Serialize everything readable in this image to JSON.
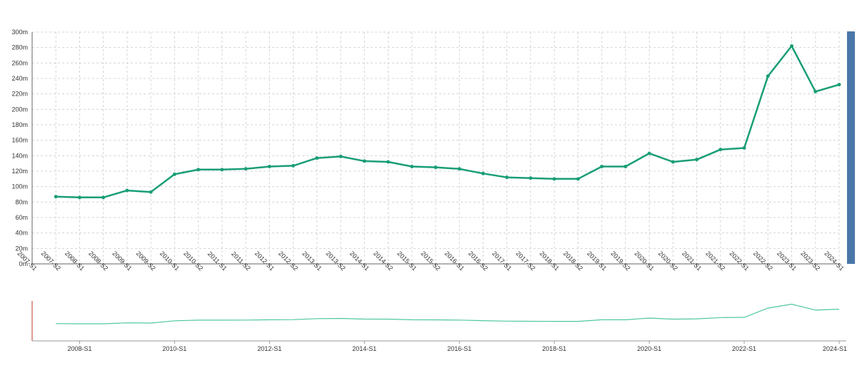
{
  "chart_data": {
    "type": "line",
    "title": "",
    "xlabel": "",
    "ylabel": "",
    "categories": [
      "2007-S1",
      "2007-S2",
      "2008-S1",
      "2008-S2",
      "2009-S1",
      "2009-S2",
      "2010-S1",
      "2010-S2",
      "2011-S1",
      "2011-S2",
      "2012-S1",
      "2012-S2",
      "2013-S1",
      "2013-S2",
      "2014-S1",
      "2014-S2",
      "2015-S1",
      "2015-S2",
      "2016-S1",
      "2016-S2",
      "2017-S1",
      "2017-S2",
      "2018-S1",
      "2018-S2",
      "2019-S1",
      "2019-S2",
      "2020-S1",
      "2020-S2",
      "2021-S1",
      "2021-S2",
      "2022-S1",
      "2022-S2",
      "2023-S1",
      "2023-S2",
      "2024-S1"
    ],
    "series": [
      {
        "values": [
          null,
          87,
          86,
          86,
          95,
          93,
          116,
          122,
          122,
          123,
          126,
          127,
          137,
          139,
          133,
          132,
          126,
          125,
          123,
          117,
          112,
          111,
          110,
          110,
          126,
          126,
          143,
          132,
          135,
          148,
          150,
          243,
          282,
          223,
          232
        ]
      }
    ],
    "y_ticks": [
      "0m",
      "20m",
      "40m",
      "60m",
      "80m",
      "100m",
      "120m",
      "140m",
      "160m",
      "180m",
      "200m",
      "220m",
      "240m",
      "260m",
      "280m",
      "300m"
    ],
    "ylim": [
      0,
      300
    ],
    "grid": true,
    "legend": "none",
    "line_color": "#1a9e77",
    "navigator": {
      "tick_labels": [
        "2008-S1",
        "2010-S1",
        "2012-S1",
        "2014-S1",
        "2016-S1",
        "2018-S1",
        "2020-S1",
        "2022-S1",
        "2024-S1"
      ],
      "line_color": "#50c7a0"
    },
    "scrollbar_color": "#4a77a8"
  }
}
